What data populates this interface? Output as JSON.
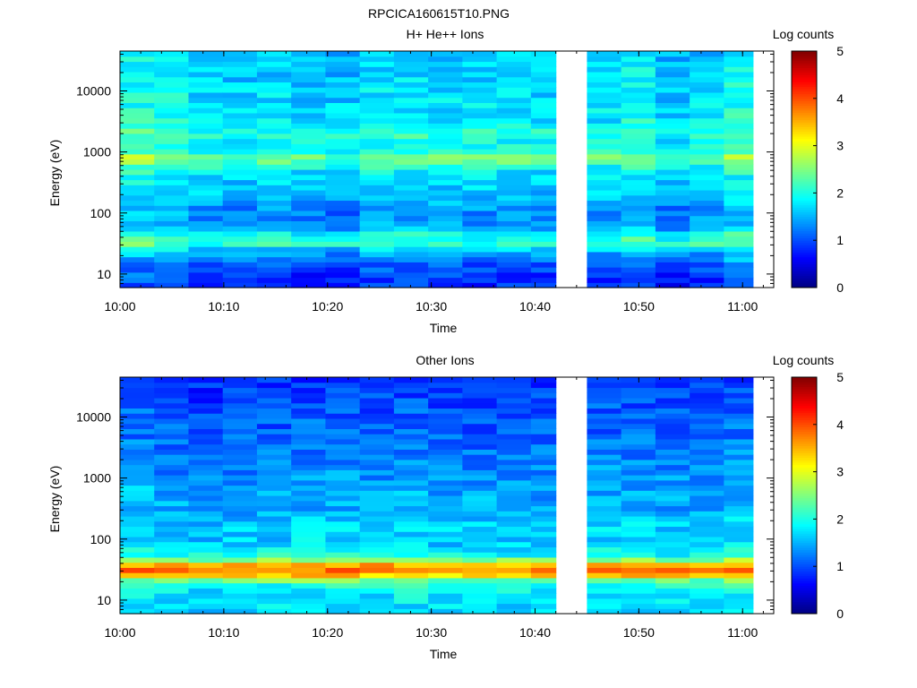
{
  "title": "RPCICA160615T10.PNG",
  "chart_data": [
    {
      "type": "heatmap",
      "title": "H+ He++ Ions",
      "xlabel": "Time",
      "ylabel": "Energy (eV)",
      "x_ticks": [
        "10:00",
        "10:10",
        "10:20",
        "10:30",
        "10:40",
        "10:50",
        "11:00"
      ],
      "y_ticks": [
        "10",
        "100",
        "1000",
        "10000"
      ],
      "y_scale": "log",
      "ylim": [
        6,
        45000
      ],
      "xlim": [
        "10:00",
        "11:03"
      ],
      "data_gap": [
        "10:42",
        "10:45"
      ],
      "colorbar": {
        "label": "Log counts",
        "ticks": [
          "0",
          "1",
          "2",
          "3",
          "4",
          "5"
        ],
        "range": [
          0,
          5
        ],
        "colormap": "jet"
      },
      "profile": {
        "energy_eV": [
          6,
          10,
          15,
          25,
          30,
          35,
          40,
          60,
          100,
          200,
          400,
          600,
          800,
          1000,
          1500,
          2000,
          3000,
          10000,
          45000
        ],
        "log_counts": [
          0.8,
          0.9,
          1.1,
          1.6,
          2.2,
          1.9,
          2.1,
          1.4,
          1.3,
          1.6,
          1.7,
          2.0,
          2.6,
          2.0,
          1.9,
          2.1,
          1.8,
          1.7,
          1.6
        ]
      },
      "time_strength": [
        1.0,
        0.9,
        0.6,
        0.5,
        0.6,
        0.5,
        0.4,
        0.7,
        0.7,
        0.6,
        0.6,
        0.6,
        0.5,
        0.6,
        0.9,
        0.4,
        0.6
      ]
    },
    {
      "type": "heatmap",
      "title": "Other Ions",
      "xlabel": "Time",
      "ylabel": "Energy (eV)",
      "x_ticks": [
        "10:00",
        "10:10",
        "10:20",
        "10:30",
        "10:40",
        "10:50",
        "11:00"
      ],
      "y_ticks": [
        "10",
        "100",
        "1000",
        "10000"
      ],
      "y_scale": "log",
      "ylim": [
        6,
        45000
      ],
      "xlim": [
        "10:00",
        "11:03"
      ],
      "data_gap": [
        "10:42",
        "10:45"
      ],
      "colorbar": {
        "label": "Log counts",
        "ticks": [
          "0",
          "1",
          "2",
          "3",
          "4",
          "5"
        ],
        "range": [
          0,
          5
        ],
        "colormap": "jet"
      },
      "profile": {
        "energy_eV": [
          6,
          10,
          15,
          20,
          25,
          30,
          35,
          40,
          50,
          80,
          150,
          300,
          600,
          1000,
          3000,
          10000,
          45000
        ],
        "log_counts": [
          1.7,
          1.8,
          1.9,
          2.2,
          3.3,
          3.8,
          3.8,
          3.4,
          2.1,
          1.7,
          1.7,
          1.5,
          1.5,
          1.4,
          1.2,
          1.1,
          0.9
        ]
      },
      "time_strength": [
        0.7,
        0.5,
        0.4,
        0.5,
        0.5,
        0.6,
        0.6,
        0.5,
        0.6,
        0.5,
        0.5,
        0.5,
        0.5,
        0.6,
        0.6,
        0.5,
        0.5
      ]
    }
  ]
}
